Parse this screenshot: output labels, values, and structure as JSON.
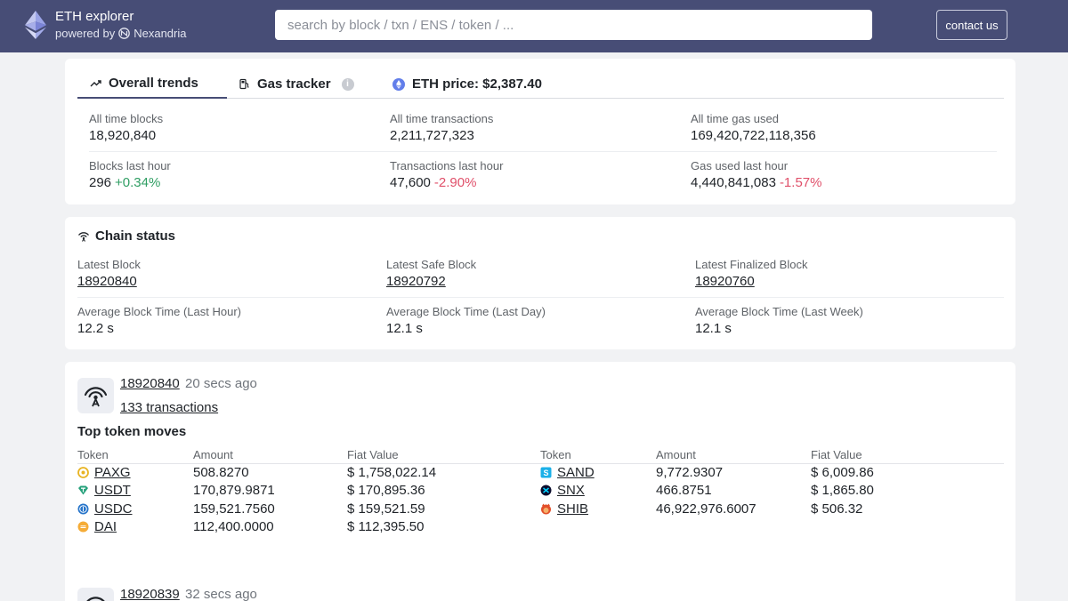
{
  "header": {
    "title": "ETH explorer",
    "powered_by": "powered by",
    "partner": "Nexandria",
    "search_placeholder": "search by block / txn / ENS / token / ...",
    "contact_label": "contact us"
  },
  "tabs": {
    "overall": "Overall trends",
    "gas": "Gas tracker",
    "price": "ETH price: $2,387.40"
  },
  "trends": {
    "all_blocks_label": "All time blocks",
    "all_blocks_value": "18,920,840",
    "all_tx_label": "All time transactions",
    "all_tx_value": "2,211,727,323",
    "all_gas_label": "All time gas used",
    "all_gas_value": "169,420,722,118,356",
    "blocks_hour_label": "Blocks last hour",
    "blocks_hour_value": "296",
    "blocks_hour_change": "+0.34%",
    "tx_hour_label": "Transactions last hour",
    "tx_hour_value": "47,600",
    "tx_hour_change": "-2.90%",
    "gas_hour_label": "Gas used last hour",
    "gas_hour_value": "4,440,841,083",
    "gas_hour_change": "-1.57%"
  },
  "chain": {
    "title": "Chain status",
    "latest_label": "Latest Block",
    "latest_value": "18920840",
    "safe_label": "Latest Safe Block",
    "safe_value": "18920792",
    "finalized_label": "Latest Finalized Block",
    "finalized_value": "18920760",
    "avg_hour_label": "Average Block Time (Last Hour)",
    "avg_hour_value": "12.2 s",
    "avg_day_label": "Average Block Time (Last Day)",
    "avg_day_value": "12.1 s",
    "avg_week_label": "Average Block Time (Last Week)",
    "avg_week_value": "12.1 s"
  },
  "block": {
    "number": "18920840",
    "ago": "20 secs ago",
    "transactions": "133 transactions",
    "moves_title": "Top token moves",
    "col_token": "Token",
    "col_amount": "Amount",
    "col_fiat": "Fiat Value",
    "left": [
      {
        "symbol": "PAXG",
        "amount": "508.8270",
        "fiat": "$ 1,758,022.14",
        "color": "#e8b423"
      },
      {
        "symbol": "USDT",
        "amount": "170,879.9871",
        "fiat": "$ 170,895.36",
        "color": "#26a17b"
      },
      {
        "symbol": "USDC",
        "amount": "159,521.7560",
        "fiat": "$ 159,521.59",
        "color": "#2775ca"
      },
      {
        "symbol": "DAI",
        "amount": "112,400.0000",
        "fiat": "$ 112,395.50",
        "color": "#f5ac37"
      }
    ],
    "right": [
      {
        "symbol": "SAND",
        "amount": "9,772.9307",
        "fiat": "$ 6,009.86",
        "color": "#1bb0e8"
      },
      {
        "symbol": "SNX",
        "amount": "466.8751",
        "fiat": "$ 1,865.80",
        "color": "#0b0d2e"
      },
      {
        "symbol": "SHIB",
        "amount": "46,922,976.6007",
        "fiat": "$ 506.32",
        "color": "#e3502b"
      }
    ]
  },
  "block2": {
    "number": "18920839",
    "ago": "32 secs ago"
  }
}
